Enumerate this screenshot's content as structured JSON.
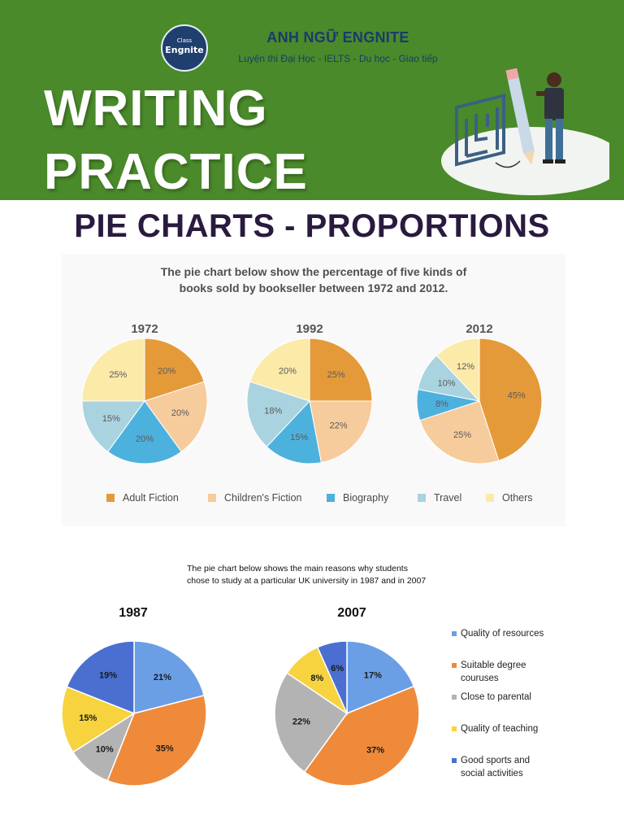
{
  "header": {
    "brand": "ANH NGỮ ENGNITE",
    "tagline": "Luyện thi Đại Học - IELTS - Du học - Giao tiếp",
    "logo_small": "Class",
    "logo_big": "Engnite",
    "title_line1": "WRITING",
    "title_line2": "PRACTICE",
    "background": "#4a8a2a"
  },
  "section_title": "PIE CHARTS - PROPORTIONS",
  "chart_data": [
    {
      "type": "pie",
      "title": "The pie chart below show the percentage of five kinds of books sold by bookseller between 1972 and 2012.",
      "title_lines": [
        "The pie chart below show the percentage of five kinds of",
        "books sold by bookseller between 1972 and 2012."
      ],
      "categories": [
        "Adult Fiction",
        "Children's Fiction",
        "Biography",
        "Travel",
        "Others"
      ],
      "colors": [
        "#e59a3a",
        "#f6cc9c",
        "#4db1de",
        "#a9d3df",
        "#fbeaa8"
      ],
      "legend_position": "bottom",
      "series": [
        {
          "name": "1972",
          "values": [
            20,
            20,
            20,
            15,
            25
          ]
        },
        {
          "name": "1992",
          "values": [
            25,
            22,
            15,
            18,
            20
          ]
        },
        {
          "name": "2012",
          "values": [
            45,
            25,
            8,
            10,
            12
          ]
        }
      ]
    },
    {
      "type": "pie",
      "title": "The pie chart below shows the main reasons why students chose to study at a particular UK university in 1987 and in 2007",
      "title_lines": [
        "The pie chart below shows the main reasons why students",
        "chose to study at a particular UK university in 1987 and in 2007"
      ],
      "categories": [
        "Quality of resources",
        "Suitable degree couruses",
        "Close to parental",
        "Quality of teaching",
        "Good sports and social activities"
      ],
      "legend_lines": [
        [
          "Quality of resources"
        ],
        [
          "Suitable degree",
          "couruses"
        ],
        [
          "Close to parental"
        ],
        [
          "Quality of teaching"
        ],
        [
          "Good sports and",
          "social activities"
        ]
      ],
      "colors": [
        "#6a9fe6",
        "#ef8a3a",
        "#b3b3b3",
        "#f6d33f",
        "#4a6fd1"
      ],
      "legend_position": "right",
      "series": [
        {
          "name": "1987",
          "values": [
            21,
            35,
            10,
            15,
            19
          ]
        },
        {
          "name": "2007",
          "values": [
            17,
            37,
            22,
            8,
            6
          ]
        }
      ]
    }
  ]
}
